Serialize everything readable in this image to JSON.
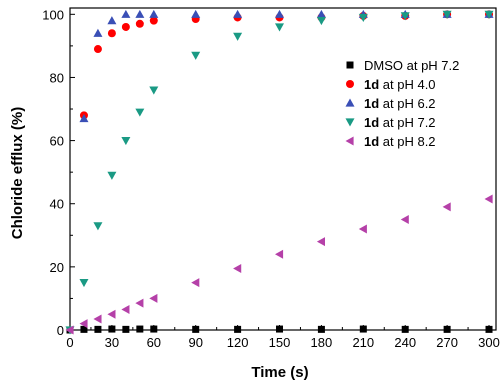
{
  "chart_data": {
    "type": "scatter",
    "title": "",
    "xlabel": "Time (s)",
    "ylabel": "Chloride efflux (%)",
    "xlim": [
      0,
      305
    ],
    "ylim": [
      0,
      102
    ],
    "xticks": [
      0,
      30,
      60,
      90,
      120,
      150,
      180,
      210,
      240,
      270,
      300
    ],
    "yticks": [
      0,
      20,
      40,
      60,
      80,
      100
    ],
    "grid": false,
    "legend_position": "right",
    "series": [
      {
        "name": "DMSO at pH 7.2",
        "name_bold": "",
        "name_rest": "DMSO at pH 7.2",
        "color": "#000000",
        "marker": "square",
        "points": [
          [
            0,
            0
          ],
          [
            10,
            0.2
          ],
          [
            20,
            0.2
          ],
          [
            30,
            0.3
          ],
          [
            40,
            0.2
          ],
          [
            50,
            0.3
          ],
          [
            60,
            0.3
          ],
          [
            90,
            0.2
          ],
          [
            120,
            0.2
          ],
          [
            150,
            0.3
          ],
          [
            180,
            0.2
          ],
          [
            210,
            0.3
          ],
          [
            240,
            0.2
          ],
          [
            270,
            0.2
          ],
          [
            300,
            0.2
          ]
        ]
      },
      {
        "name": "1d at pH 4.0",
        "name_bold": "1d",
        "name_rest": " at pH 4.0",
        "color": "#ff0000",
        "marker": "circle",
        "points": [
          [
            10,
            68
          ],
          [
            20,
            89
          ],
          [
            30,
            94
          ],
          [
            40,
            96
          ],
          [
            50,
            97
          ],
          [
            60,
            98
          ],
          [
            90,
            98.5
          ],
          [
            120,
            99
          ],
          [
            150,
            99
          ],
          [
            180,
            99
          ],
          [
            210,
            99.5
          ],
          [
            240,
            99.5
          ],
          [
            270,
            100
          ],
          [
            300,
            100
          ]
        ]
      },
      {
        "name": "1d at pH 6.2",
        "name_bold": "1d",
        "name_rest": " at pH 6.2",
        "color": "#3a4fb6",
        "marker": "triangle-up",
        "points": [
          [
            10,
            67
          ],
          [
            20,
            94
          ],
          [
            30,
            98
          ],
          [
            40,
            100
          ],
          [
            50,
            100
          ],
          [
            60,
            100
          ],
          [
            90,
            100
          ],
          [
            120,
            100
          ],
          [
            150,
            100
          ],
          [
            180,
            100
          ],
          [
            210,
            100
          ],
          [
            240,
            100
          ],
          [
            270,
            100
          ],
          [
            300,
            100
          ]
        ]
      },
      {
        "name": "1d at pH 7.2",
        "name_bold": "1d",
        "name_rest": " at pH 7.2",
        "color": "#1a9a84",
        "marker": "triangle-down",
        "points": [
          [
            0,
            0
          ],
          [
            10,
            15
          ],
          [
            20,
            33
          ],
          [
            30,
            49
          ],
          [
            40,
            60
          ],
          [
            50,
            69
          ],
          [
            60,
            76
          ],
          [
            90,
            87
          ],
          [
            120,
            93
          ],
          [
            150,
            96
          ],
          [
            180,
            98
          ],
          [
            210,
            99
          ],
          [
            240,
            99.5
          ],
          [
            270,
            100
          ],
          [
            300,
            100
          ]
        ]
      },
      {
        "name": "1d at pH 8.2",
        "name_bold": "1d",
        "name_rest": " at pH 8.2",
        "color": "#b540a8",
        "marker": "triangle-left",
        "points": [
          [
            0,
            0
          ],
          [
            10,
            2
          ],
          [
            20,
            3.5
          ],
          [
            30,
            5
          ],
          [
            40,
            6.5
          ],
          [
            50,
            8.5
          ],
          [
            60,
            10
          ],
          [
            90,
            15
          ],
          [
            120,
            19.5
          ],
          [
            150,
            24
          ],
          [
            180,
            28
          ],
          [
            210,
            32
          ],
          [
            240,
            35
          ],
          [
            270,
            39
          ],
          [
            300,
            41.5
          ]
        ]
      }
    ]
  }
}
